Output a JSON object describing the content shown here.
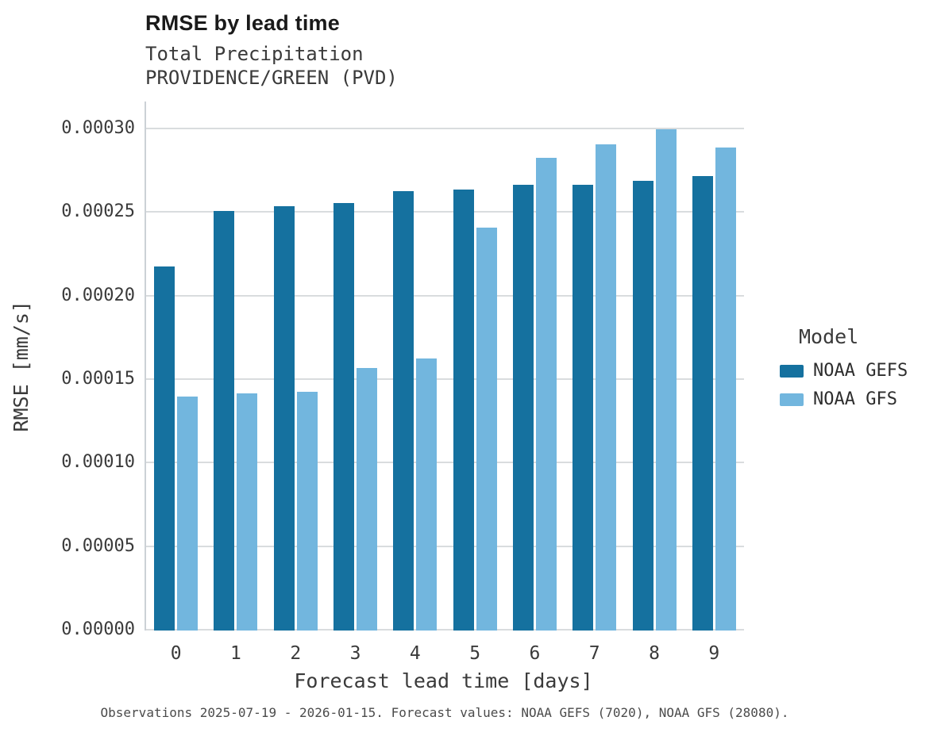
{
  "chart_data": {
    "type": "bar",
    "title": "RMSE by lead time",
    "subtitle": [
      "Total Precipitation",
      "PROVIDENCE/GREEN (PVD)"
    ],
    "xlabel": "Forecast lead time [days]",
    "ylabel": "RMSE [mm/s]",
    "legend_title": "Model",
    "legend_position": "right",
    "grid": true,
    "categories": [
      "0",
      "1",
      "2",
      "3",
      "4",
      "5",
      "6",
      "7",
      "8",
      "9"
    ],
    "series": [
      {
        "name": "NOAA GEFS",
        "color": "#15719f",
        "values": [
          0.000218,
          0.000251,
          0.000254,
          0.000256,
          0.000263,
          0.000264,
          0.000267,
          0.000267,
          0.000269,
          0.000272
        ]
      },
      {
        "name": "NOAA GFS",
        "color": "#72b6de",
        "values": [
          0.00014,
          0.000142,
          0.000143,
          0.000157,
          0.000163,
          0.000241,
          0.000283,
          0.000291,
          0.0003,
          0.000289
        ]
      }
    ],
    "ylim": [
      0,
      0.0003
    ],
    "yticks": [
      {
        "value": 0.0,
        "label": "0.00000"
      },
      {
        "value": 5e-05,
        "label": "0.00005"
      },
      {
        "value": 0.0001,
        "label": "0.00010"
      },
      {
        "value": 0.00015,
        "label": "0.00015"
      },
      {
        "value": 0.0002,
        "label": "0.00020"
      },
      {
        "value": 0.00025,
        "label": "0.00025"
      },
      {
        "value": 0.0003,
        "label": "0.00030"
      }
    ]
  },
  "caption": "Observations 2025-07-19 - 2026-01-15. Forecast values: NOAA GEFS (7020), NOAA GFS (28080)."
}
